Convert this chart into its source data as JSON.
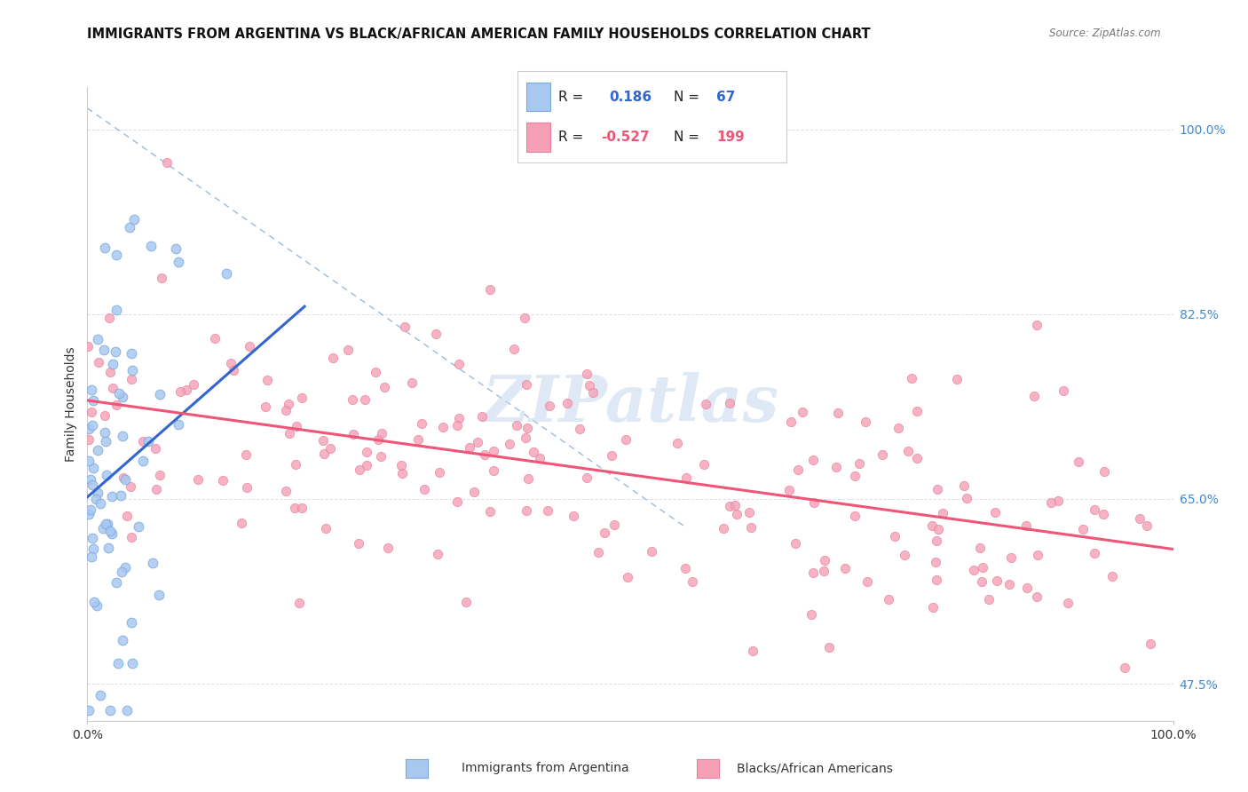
{
  "title": "IMMIGRANTS FROM ARGENTINA VS BLACK/AFRICAN AMERICAN FAMILY HOUSEHOLDS CORRELATION CHART",
  "source_text": "Source: ZipAtlas.com",
  "ylabel": "Family Households",
  "xlim": [
    0.0,
    1.0
  ],
  "ylim": [
    0.44,
    1.04
  ],
  "yticks": [
    0.475,
    0.65,
    0.825,
    1.0
  ],
  "ytick_labels": [
    "47.5%",
    "65.0%",
    "82.5%",
    "100.0%"
  ],
  "blue_color": "#a8c8f0",
  "blue_edge_color": "#7aaadd",
  "pink_color": "#f5a0b5",
  "pink_edge_color": "#e880a0",
  "blue_line_color": "#3366cc",
  "pink_line_color": "#ee5577",
  "dashed_line_color": "#99bbdd",
  "watermark": "ZIPatlas",
  "watermark_color": "#c5d8ee",
  "blue_r": 0.186,
  "blue_n": 67,
  "pink_r": -0.527,
  "pink_n": 199,
  "background_color": "#ffffff",
  "title_fontsize": 10.5,
  "legend_fontsize": 11,
  "tick_fontsize": 10,
  "ylabel_fontsize": 10,
  "grid_color": "#ddddee",
  "spine_color": "#cccccc"
}
